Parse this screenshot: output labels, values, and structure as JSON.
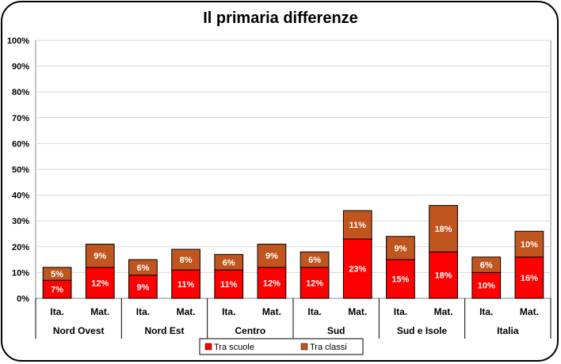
{
  "chart_data": {
    "type": "bar",
    "stacked": true,
    "title": "Il primaria differenze",
    "groups": [
      "Nord Ovest",
      "Nord Est",
      "Centro",
      "Sud",
      "Sud e Isole",
      "Italia"
    ],
    "subcategories": [
      "Ita.",
      "Mat."
    ],
    "yticks": [
      "0%",
      "10%",
      "20%",
      "30%",
      "40%",
      "50%",
      "60%",
      "70%",
      "80%",
      "90%",
      "100%"
    ],
    "ylim": [
      0,
      100
    ],
    "grid": true,
    "legend_position": "bottom",
    "series": [
      {
        "name": "Tra scuole",
        "color": "#ff0000",
        "values": [
          7,
          12,
          9,
          11,
          11,
          12,
          12,
          23,
          15,
          18,
          10,
          16
        ],
        "labels": [
          "7%",
          "12%",
          "9%",
          "11%",
          "11%",
          "12%",
          "12%",
          "23%",
          "15%",
          "18%",
          "10%",
          "16%"
        ]
      },
      {
        "name": "Tra classi",
        "color": "#c0561e",
        "values": [
          5,
          9,
          6,
          8,
          6,
          9,
          6,
          11,
          9,
          18,
          6,
          10
        ],
        "labels": [
          "5%",
          "9%",
          "6%",
          "8%",
          "6%",
          "9%",
          "6%",
          "11%",
          "9%",
          "18%",
          "6%",
          "10%"
        ]
      }
    ]
  }
}
